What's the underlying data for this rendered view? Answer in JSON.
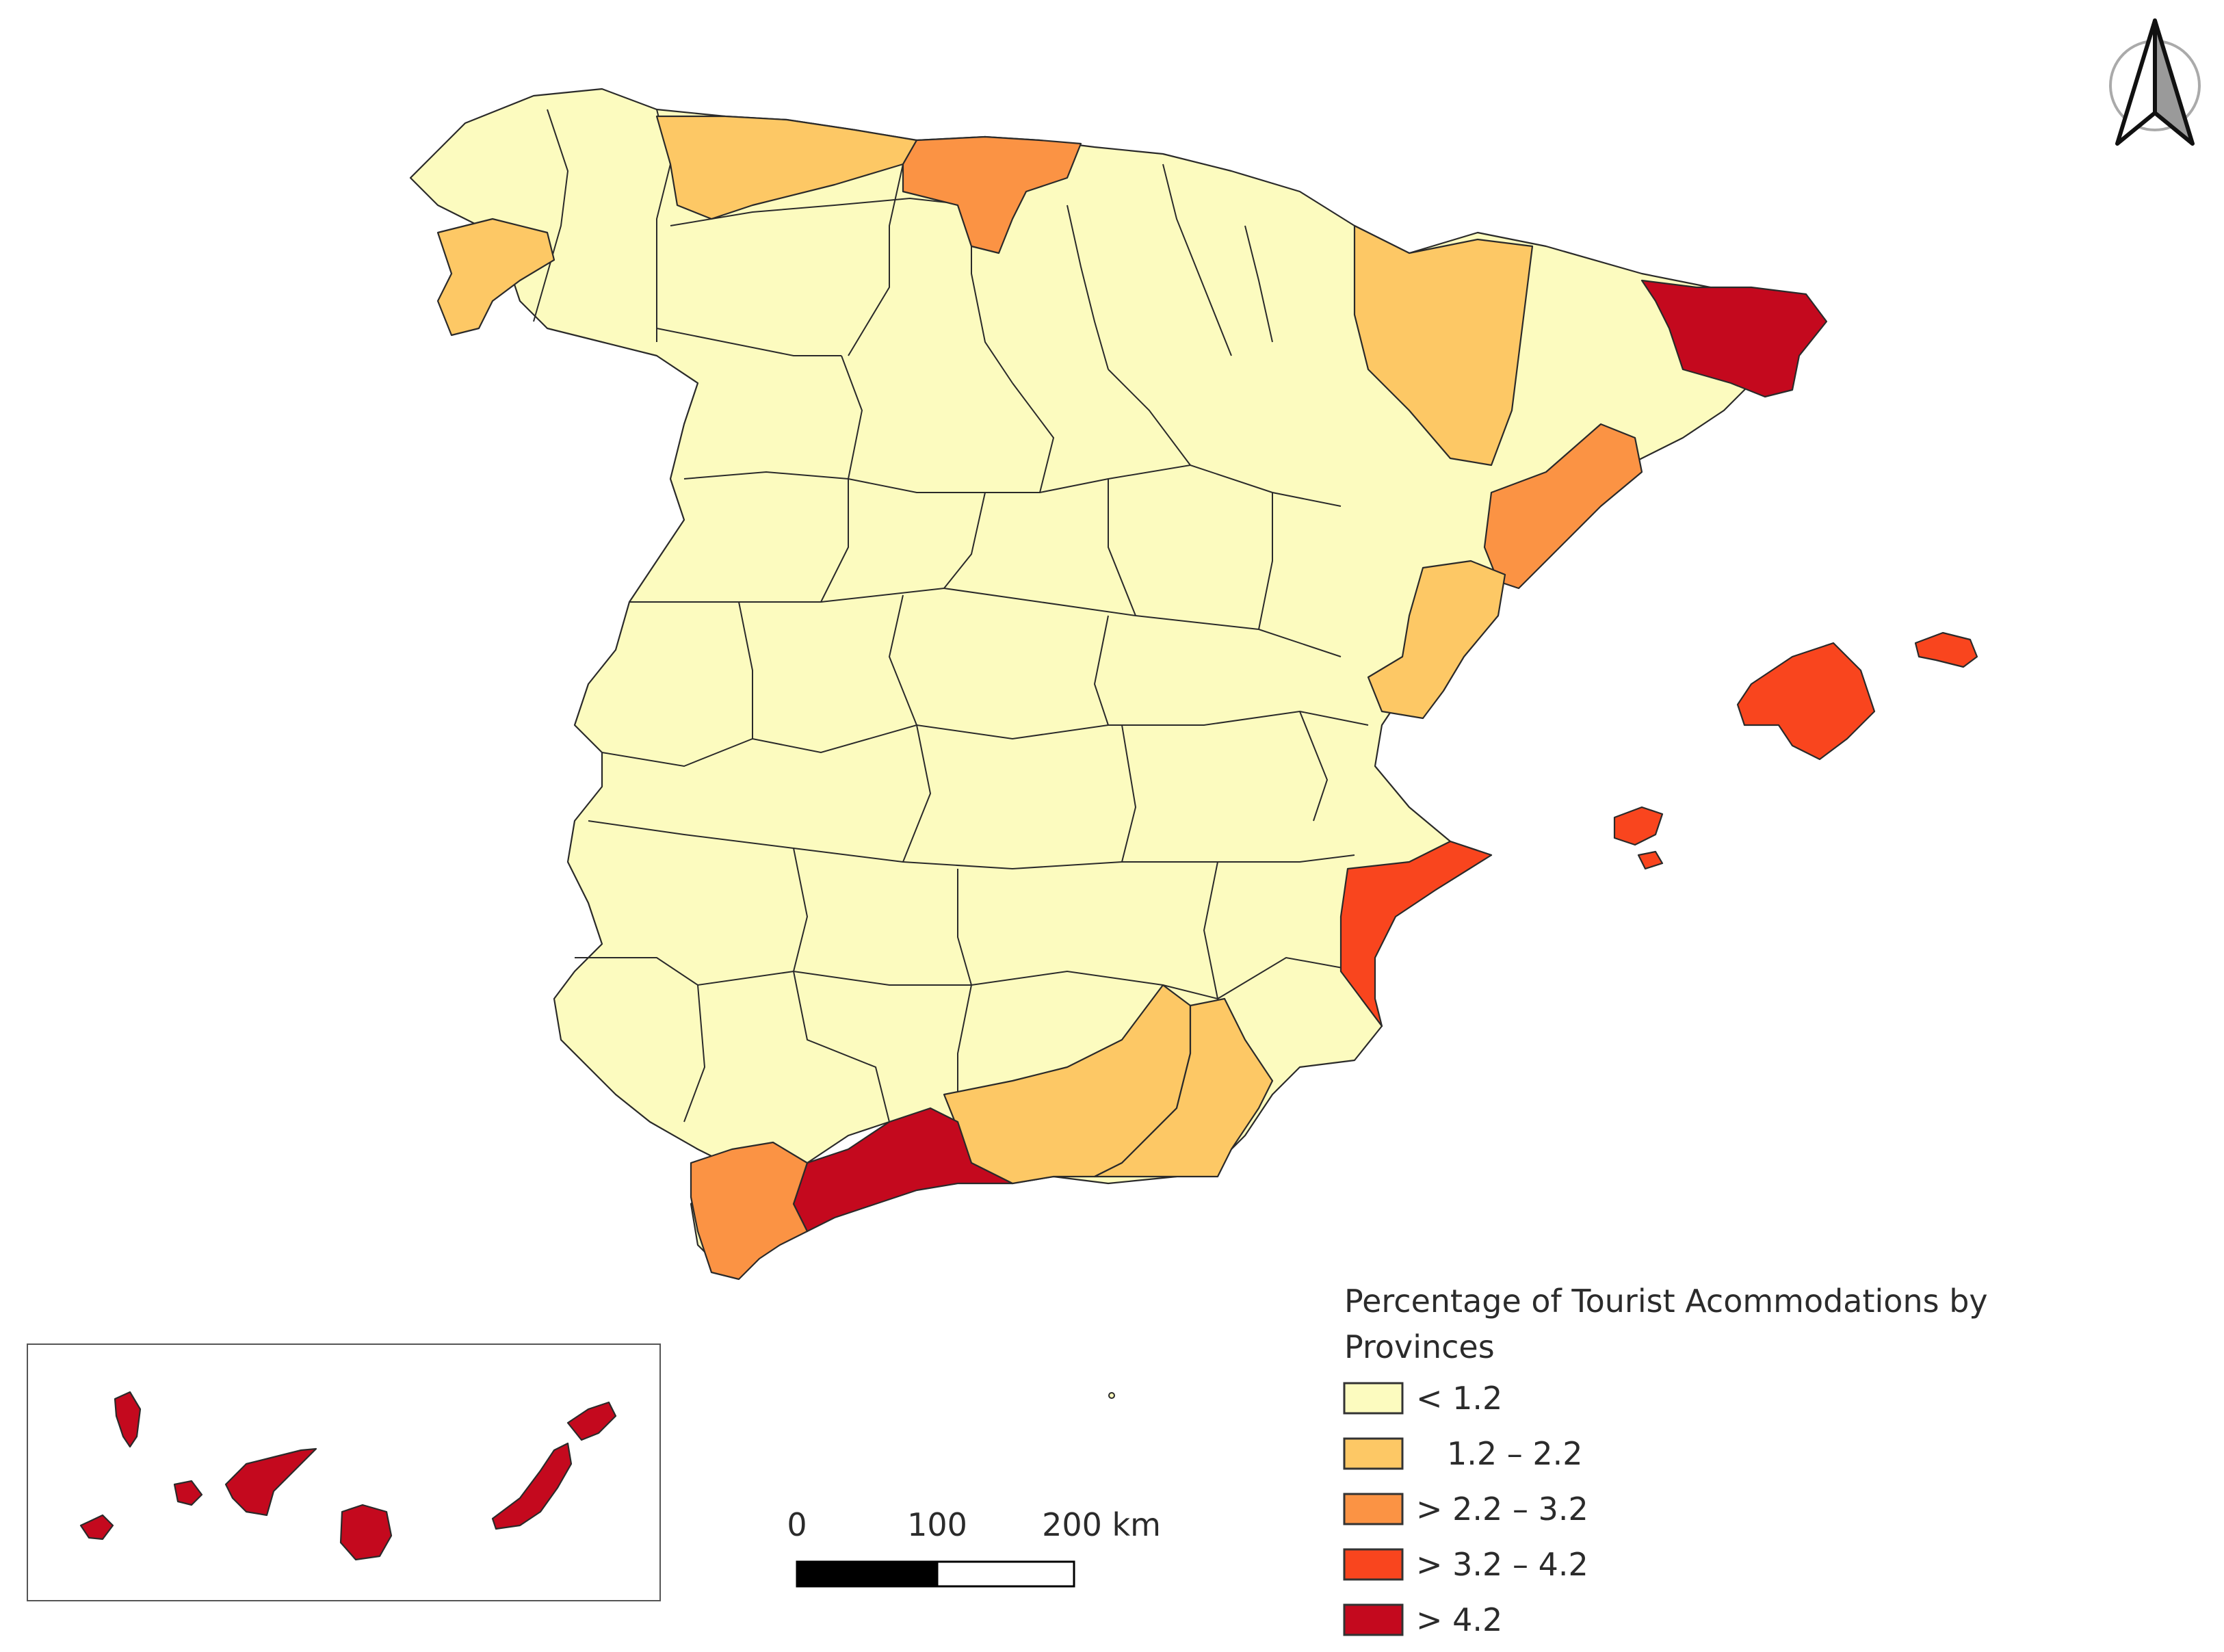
{
  "legend": {
    "title_line1": "Percentage of Tourist Acommodations by",
    "title_line2": "Provinces",
    "classes": [
      {
        "label": "< 1.2",
        "color": "#fcfbbf"
      },
      {
        "label": "1.2 – 2.2",
        "color": "#fdc865"
      },
      {
        "label": "> 2.2 – 3.2",
        "color": "#fb9344"
      },
      {
        "label": "> 3.2 – 4.2",
        "color": "#f9451e"
      },
      {
        "label": "> 4.2",
        "color": "#c4091e"
      }
    ]
  },
  "scale_bar": {
    "labels": [
      "0",
      "100",
      "200 km"
    ]
  },
  "north_arrow": {
    "icon": "north-arrow-icon"
  },
  "inset": {
    "name": "canary-islands-inset"
  }
}
